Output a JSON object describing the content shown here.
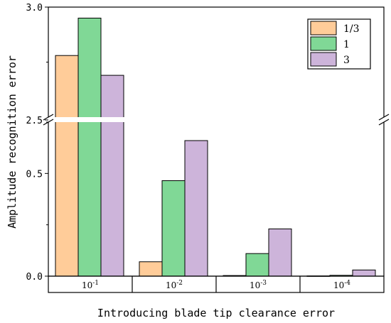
{
  "chart_data": {
    "type": "bar",
    "title": "",
    "xlabel": "Introducing blade tip clearance error",
    "ylabel": "Amplitude recognition error",
    "categories": [
      {
        "base": "10",
        "exp": "-1"
      },
      {
        "base": "10",
        "exp": "-2"
      },
      {
        "base": "10",
        "exp": "-3"
      },
      {
        "base": "10",
        "exp": "-4"
      }
    ],
    "series": [
      {
        "name": "1/3",
        "color": "#FFCC99",
        "values": [
          2.78,
          0.07,
          0.003,
          0.001
        ]
      },
      {
        "name": "1",
        "color": "#80D896",
        "values": [
          2.95,
          0.465,
          0.11,
          0.004
        ]
      },
      {
        "name": "3",
        "color": "#CDB4DA",
        "values": [
          2.69,
          0.66,
          0.23,
          0.03
        ]
      }
    ],
    "y_axis_break": {
      "lower_range": [
        0,
        0.75
      ],
      "upper_range": [
        2.5,
        3.0
      ]
    },
    "y_ticks": [
      {
        "value": 0,
        "label": "0.0"
      },
      {
        "value": 0.5,
        "label": "0.5"
      },
      {
        "value": 2.5,
        "label": "2.5"
      },
      {
        "value": 3.0,
        "label": "3.0"
      }
    ],
    "legend_position": "top-right",
    "grid": false
  }
}
